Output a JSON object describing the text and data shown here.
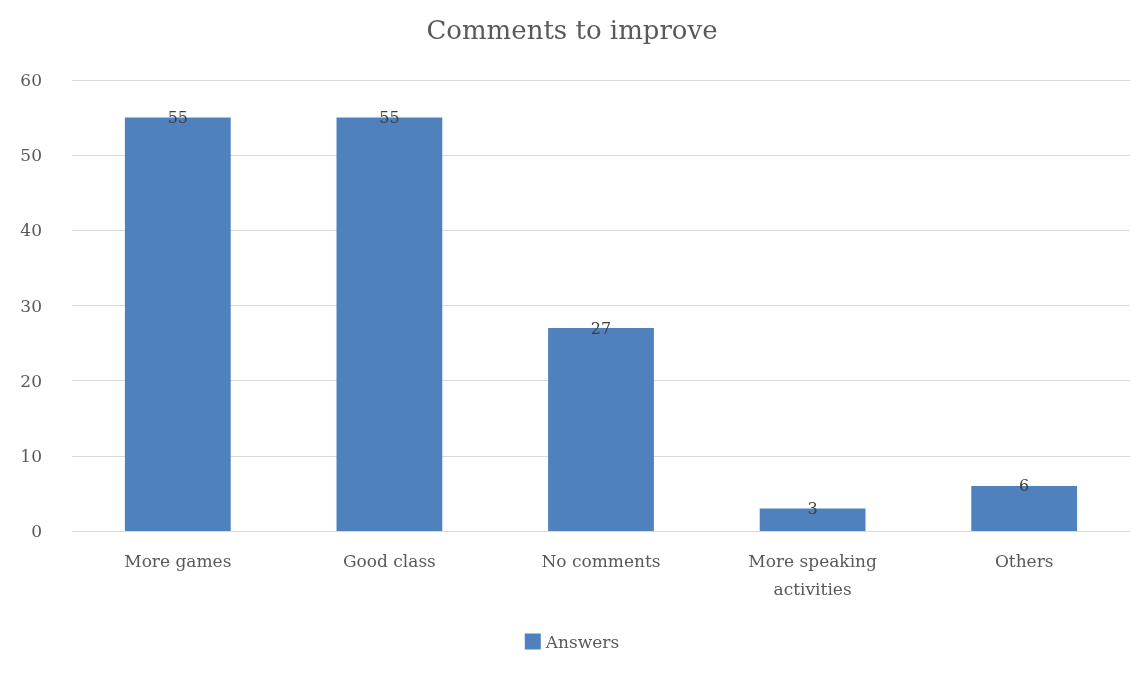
{
  "chart_data": {
    "type": "bar",
    "title": "Comments to improve",
    "categories": [
      "More games",
      "Good class",
      "No comments",
      "More speaking activities",
      "Others"
    ],
    "series": [
      {
        "name": "Answers",
        "color": "#4f81bd",
        "values": [
          55,
          55,
          27,
          3,
          6
        ]
      }
    ],
    "ylim": [
      0,
      60
    ],
    "yticks": [
      0,
      10,
      20,
      30,
      40,
      50,
      60
    ],
    "grid": "y",
    "legend": "bottom",
    "data_labels": true
  }
}
